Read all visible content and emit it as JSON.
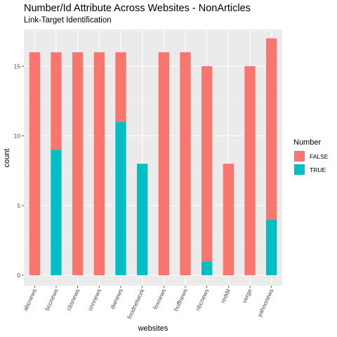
{
  "chart_data": {
    "type": "bar",
    "stacked": true,
    "title": "Number/Id Attribute Across Websites - NonArticles",
    "subtitle": "Link-Target Identification",
    "xlabel": "websites",
    "ylabel": "count",
    "ylim": [
      0,
      17.8
    ],
    "yticks": [
      0,
      5,
      10,
      15
    ],
    "grid": true,
    "legend_position": "right",
    "legend_title": "Number",
    "categories": [
      "abcnews",
      "bccnews",
      "cbsnews",
      "cnnnews",
      "dwnews",
      "foodnetwork",
      "foxnews",
      "huffnews",
      "nbcnews",
      "reddit",
      "verge",
      "yahoonews"
    ],
    "series": [
      {
        "name": "FALSE",
        "color": "#F8766D",
        "values": [
          16,
          7,
          16,
          16,
          5,
          0,
          16,
          16,
          14,
          8,
          15,
          13
        ]
      },
      {
        "name": "TRUE",
        "color": "#00BFC4",
        "values": [
          0,
          9,
          0,
          0,
          11,
          8,
          0,
          0,
          1,
          0,
          0,
          4
        ]
      }
    ]
  }
}
